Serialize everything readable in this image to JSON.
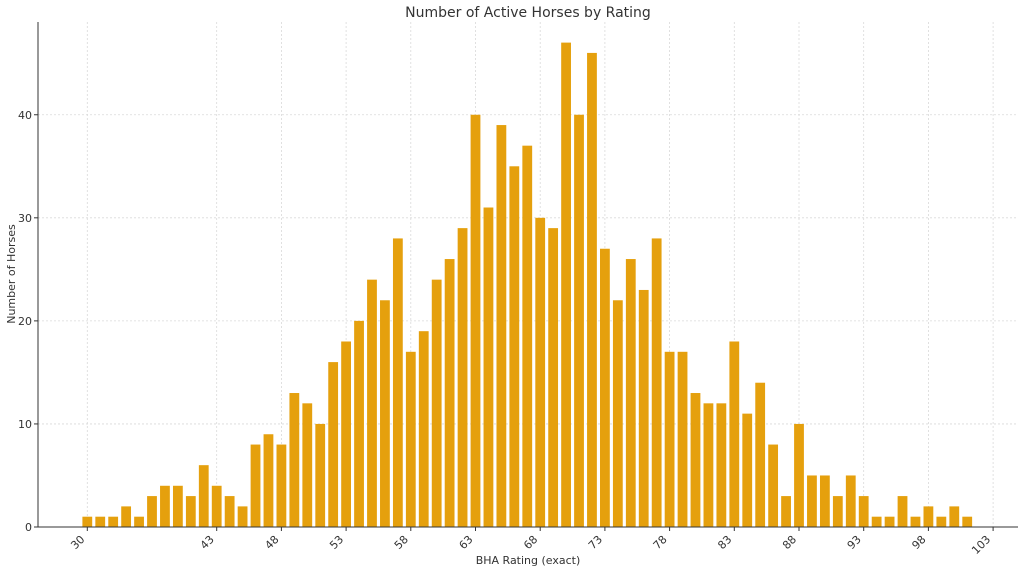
{
  "chart_data": {
    "type": "bar",
    "title": "Number of Active Horses by Rating",
    "xlabel": "BHA Rating (exact)",
    "ylabel": "Number of Horses",
    "bar_color": "#E5A00D",
    "grid": true,
    "ylim": [
      0,
      49
    ],
    "yticks": [
      0,
      10,
      20,
      30,
      40
    ],
    "xticks": [
      "30",
      "43",
      "48",
      "53",
      "58",
      "63",
      "68",
      "73",
      "78",
      "83",
      "88",
      "93",
      "98",
      "103"
    ],
    "values": [
      1,
      1,
      1,
      2,
      1,
      3,
      4,
      4,
      3,
      6,
      4,
      3,
      2,
      8,
      9,
      8,
      13,
      12,
      10,
      16,
      18,
      20,
      24,
      22,
      28,
      17,
      19,
      24,
      26,
      29,
      40,
      31,
      39,
      35,
      37,
      30,
      29,
      47,
      40,
      46,
      27,
      22,
      26,
      23,
      28,
      17,
      17,
      13,
      12,
      12,
      18,
      11,
      14,
      8,
      3,
      10,
      5,
      5,
      3,
      5,
      3,
      1,
      1,
      3,
      1,
      2,
      1,
      2,
      1
    ]
  }
}
